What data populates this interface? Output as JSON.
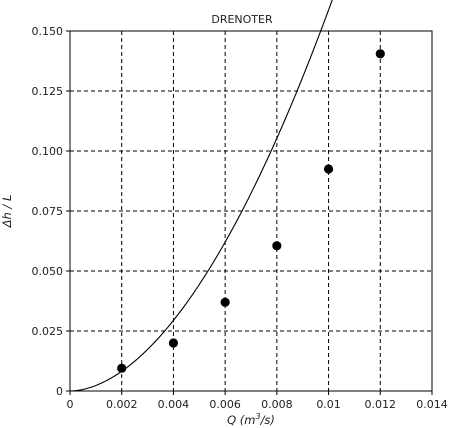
{
  "chart_data": {
    "type": "scatter",
    "title": "DRENOTER",
    "xlabel": "Q (m³/s)",
    "ylabel": "Δh / L",
    "xlim": [
      0,
      0.014
    ],
    "ylim": [
      0,
      0.15
    ],
    "x_ticks": [
      "0",
      "0.002",
      "0.004",
      "0.006",
      "0.008",
      "0.01",
      "0.012",
      "0.014"
    ],
    "y_ticks": [
      "0",
      "0.025",
      "0.050",
      "0.075",
      "0.100",
      "0.125",
      "0.150"
    ],
    "grid": true,
    "grid_style": "dashed",
    "series": [
      {
        "kind": "points",
        "x": [
          0.002,
          0.004,
          0.006,
          0.008,
          0.01,
          0.012
        ],
        "y": [
          0.0095,
          0.02,
          0.037,
          0.0605,
          0.0925,
          0.1405
        ]
      },
      {
        "kind": "fit-curve",
        "equation": "y = 760 * x^1.84",
        "x_range": [
          0,
          0.012
        ]
      }
    ]
  }
}
